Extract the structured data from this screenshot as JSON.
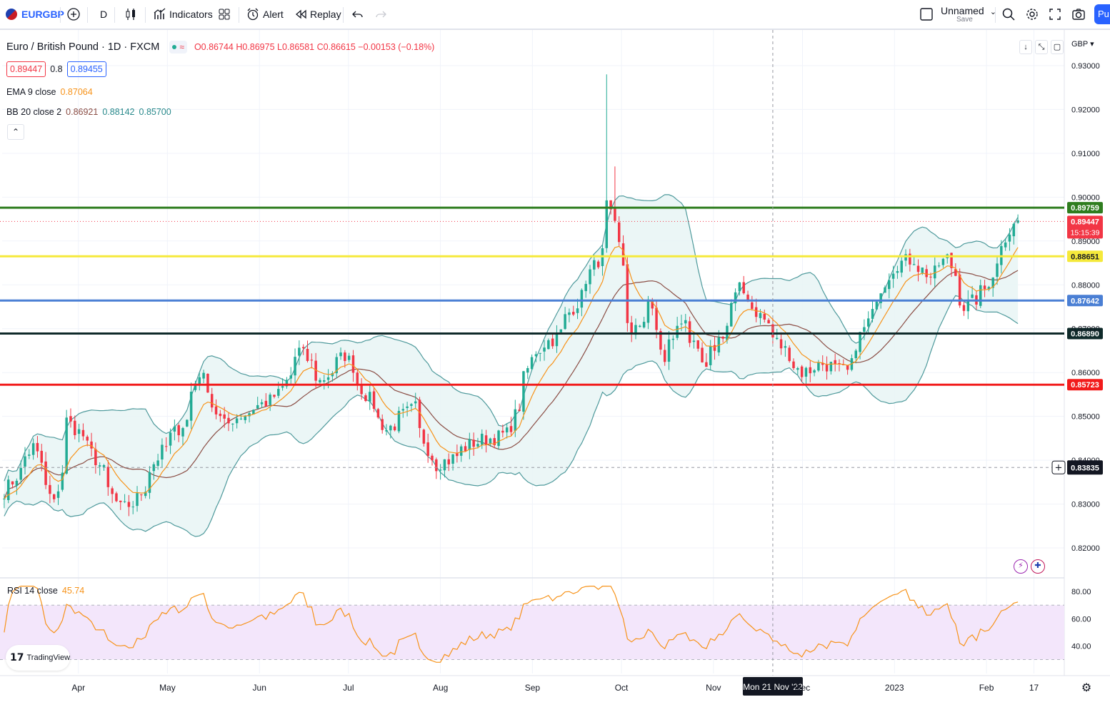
{
  "toolbar": {
    "symbol": "EURGBP",
    "interval": "D",
    "indicators_label": "Indicators",
    "alert_label": "Alert",
    "replay_label": "Replay",
    "layout_name": "Unnamed",
    "layout_save": "Save",
    "publish_label": "Pu"
  },
  "legend": {
    "title": "Euro / British Pound · 1D · FXCM",
    "ohlc": "O0.86744 H0.86975 L0.86581 C0.86615 −0.00153 (−0.18%)",
    "bid": "0.89447",
    "spread": "0.8",
    "ask": "0.89455",
    "ema_label": "EMA 9 close",
    "ema_value": "0.87064",
    "bb_label": "BB 20 close 2",
    "bb_basis": "0.86921",
    "bb_upper": "0.88142",
    "bb_lower": "0.85700",
    "collapse": "⌃"
  },
  "currency_label": "GBP ▾",
  "price_axis": {
    "ticks": [
      "0.93000",
      "0.92000",
      "0.91000",
      "0.90000",
      "0.89000",
      "0.88000",
      "0.87000",
      "0.86000",
      "0.85000",
      "0.84000",
      "0.83000",
      "0.82000"
    ]
  },
  "horizontal_lines": [
    {
      "price": 0.89759,
      "label": "0.89759",
      "color": "#2f7d1f"
    },
    {
      "price": 0.88651,
      "label": "0.88651",
      "color": "#f5e93b"
    },
    {
      "price": 0.87642,
      "label": "0.87642",
      "color": "#4a7fd4"
    },
    {
      "price": 0.8689,
      "label": "0.86890",
      "color": "#0f2a2a"
    },
    {
      "price": 0.85723,
      "label": "0.85723",
      "color": "#f21b1b"
    }
  ],
  "last_price": {
    "price": 0.89447,
    "label": "0.89447",
    "countdown": "15:15:39",
    "color": "#f23645"
  },
  "crosshair": {
    "price": 0.83835,
    "label": "0.83835",
    "date_label": "Mon 21 Nov '22"
  },
  "time_axis": {
    "labels": [
      "Apr",
      "May",
      "Jun",
      "Jul",
      "Aug",
      "Sep",
      "Oct",
      "Nov",
      "Dec",
      "2023",
      "Feb",
      "17"
    ]
  },
  "rsi": {
    "label": "RSI 14 close",
    "value": "45.74",
    "ticks": [
      "80.00",
      "60.00",
      "40.00"
    ],
    "upper_band": 70,
    "lower_band": 30
  },
  "branding": {
    "name": "TradingView"
  },
  "colors": {
    "up": "#22ab94",
    "down": "#f23645",
    "ema": "#f7931a",
    "bb_basis": "#8b4e45",
    "bb_band": "#4f9a9c",
    "bb_fill": "#e8f4f4",
    "rsi_line": "#f7931a",
    "rsi_fill": "#f3e6fb"
  },
  "chart_data": {
    "type": "candlestick",
    "symbol": "EURGBP",
    "interval": "1D",
    "ylim": [
      0.8135,
      0.9365
    ],
    "rsi_ylim": [
      25,
      88
    ],
    "anchors_ohlc_note": "monthly path key points",
    "price_path": [
      {
        "date": "2022-03-07",
        "close": 0.833
      },
      {
        "date": "2022-03-16",
        "close": 0.843
      },
      {
        "date": "2022-03-23",
        "close": 0.83
      },
      {
        "date": "2022-03-28",
        "close": 0.849
      },
      {
        "date": "2022-04-04",
        "close": 0.843
      },
      {
        "date": "2022-04-14",
        "close": 0.829
      },
      {
        "date": "2022-04-19",
        "close": 0.83
      },
      {
        "date": "2022-04-28",
        "close": 0.842
      },
      {
        "date": "2022-05-06",
        "close": 0.849
      },
      {
        "date": "2022-05-11",
        "close": 0.86
      },
      {
        "date": "2022-05-19",
        "close": 0.848
      },
      {
        "date": "2022-05-27",
        "close": 0.851
      },
      {
        "date": "2022-06-07",
        "close": 0.855
      },
      {
        "date": "2022-06-14",
        "close": 0.865
      },
      {
        "date": "2022-06-21",
        "close": 0.858
      },
      {
        "date": "2022-06-29",
        "close": 0.864
      },
      {
        "date": "2022-07-06",
        "close": 0.855
      },
      {
        "date": "2022-07-13",
        "close": 0.847
      },
      {
        "date": "2022-07-22",
        "close": 0.852
      },
      {
        "date": "2022-07-29",
        "close": 0.839
      },
      {
        "date": "2022-08-03",
        "close": 0.84
      },
      {
        "date": "2022-08-11",
        "close": 0.844
      },
      {
        "date": "2022-08-23",
        "close": 0.846
      },
      {
        "date": "2022-09-01",
        "close": 0.865
      },
      {
        "date": "2022-09-08",
        "close": 0.868
      },
      {
        "date": "2022-09-15",
        "close": 0.876
      },
      {
        "date": "2022-09-23",
        "close": 0.887
      },
      {
        "date": "2022-09-26",
        "close": 0.898
      },
      {
        "date": "2022-09-28",
        "close": 0.893
      },
      {
        "date": "2022-10-04",
        "close": 0.868
      },
      {
        "date": "2022-10-10",
        "close": 0.877
      },
      {
        "date": "2022-10-14",
        "close": 0.862
      },
      {
        "date": "2022-10-21",
        "close": 0.873
      },
      {
        "date": "2022-10-28",
        "close": 0.86
      },
      {
        "date": "2022-11-03",
        "close": 0.869
      },
      {
        "date": "2022-11-09",
        "close": 0.879
      },
      {
        "date": "2022-11-16",
        "close": 0.873
      },
      {
        "date": "2022-11-23",
        "close": 0.866
      },
      {
        "date": "2022-11-30",
        "close": 0.86
      },
      {
        "date": "2022-12-07",
        "close": 0.862
      },
      {
        "date": "2022-12-15",
        "close": 0.86
      },
      {
        "date": "2022-12-21",
        "close": 0.87
      },
      {
        "date": "2022-12-30",
        "close": 0.884
      },
      {
        "date": "2023-01-06",
        "close": 0.886
      },
      {
        "date": "2023-01-12",
        "close": 0.882
      },
      {
        "date": "2023-01-18",
        "close": 0.886
      },
      {
        "date": "2023-01-24",
        "close": 0.875
      },
      {
        "date": "2023-01-31",
        "close": 0.879
      },
      {
        "date": "2023-02-06",
        "close": 0.89
      },
      {
        "date": "2023-02-10",
        "close": 0.8945
      }
    ],
    "spike_highs": [
      {
        "date": "2022-09-26",
        "high": 0.928
      },
      {
        "date": "2022-09-28",
        "high": 0.907
      }
    ]
  }
}
